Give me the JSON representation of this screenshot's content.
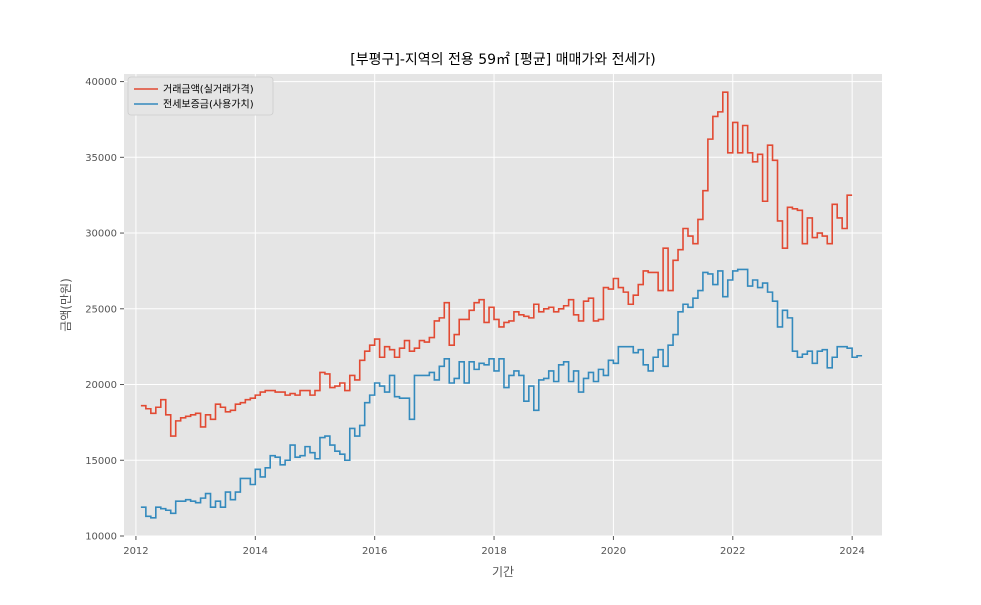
{
  "chart_data": {
    "type": "line",
    "drawstyle": "steps-post",
    "title": "[부평구]-지역의 전용 59㎡ [평균] 매매가와 전세가)",
    "xlabel": "기간",
    "ylabel": "금액(만원)",
    "xlim": [
      2011.8,
      2024.5
    ],
    "ylim": [
      10000,
      40500
    ],
    "grid": true,
    "legend_placement": "top-left",
    "x_ticks": [
      2012,
      2014,
      2016,
      2018,
      2020,
      2022,
      2024
    ],
    "x_tick_labels": [
      "2012",
      "2014",
      "2016",
      "2018",
      "2020",
      "2022",
      "2024"
    ],
    "y_ticks": [
      10000,
      15000,
      20000,
      25000,
      30000,
      35000,
      40000
    ],
    "y_tick_labels": [
      "10000",
      "15000",
      "20000",
      "25000",
      "30000",
      "35000",
      "40000"
    ],
    "x_start": 2012.083,
    "x_step": 0.08333,
    "series": [
      {
        "name": "거래금액(실거래가격)",
        "color": "#E24A33",
        "values": [
          18600,
          18400,
          18100,
          18500,
          19000,
          18000,
          16600,
          17600,
          17800,
          17900,
          18000,
          18100,
          17200,
          18000,
          17700,
          18700,
          18500,
          18200,
          18300,
          18700,
          18800,
          19000,
          19100,
          19300,
          19500,
          19600,
          19600,
          19500,
          19500,
          19300,
          19400,
          19300,
          19600,
          19600,
          19300,
          19600,
          20800,
          20700,
          19800,
          19900,
          20100,
          19600,
          20600,
          20300,
          21600,
          22200,
          22600,
          23000,
          21800,
          22500,
          22300,
          21800,
          22400,
          22900,
          22200,
          22400,
          22900,
          22800,
          23100,
          24200,
          24400,
          25400,
          22600,
          23300,
          24300,
          24300,
          24900,
          25400,
          25600,
          24100,
          25100,
          24300,
          23800,
          24100,
          24200,
          24800,
          24600,
          24500,
          24400,
          25300,
          24800,
          25000,
          25100,
          24800,
          25000,
          25200,
          25600,
          24600,
          24200,
          25500,
          25700,
          24200,
          24300,
          26400,
          26300,
          27000,
          26400,
          26100,
          25300,
          25900,
          26600,
          27500,
          27400,
          27400,
          26200,
          29000,
          26200,
          28200,
          28900,
          30300,
          29800,
          29300,
          30900,
          32800,
          36200,
          37700,
          38000,
          39300,
          35300,
          37300,
          35300,
          37100,
          35300,
          34700,
          35200,
          32100,
          35800,
          34800,
          30800,
          29000,
          31700,
          31600,
          31500,
          29300,
          31000,
          29700,
          30000,
          29800,
          29300,
          31900,
          31000,
          30300,
          32500
        ]
      },
      {
        "name": "전세보증금(사용가치)",
        "color": "#348ABD",
        "values": [
          11900,
          11300,
          11200,
          11900,
          11800,
          11700,
          11500,
          12300,
          12300,
          12400,
          12300,
          12200,
          12500,
          12800,
          11900,
          12300,
          11900,
          12900,
          12400,
          12900,
          13800,
          13800,
          13400,
          14400,
          13900,
          14500,
          15300,
          15200,
          14700,
          15000,
          16000,
          15200,
          15300,
          15900,
          15500,
          15100,
          16500,
          16600,
          16000,
          15600,
          15400,
          15000,
          17100,
          16600,
          17300,
          18800,
          19300,
          20100,
          19900,
          19500,
          20600,
          19200,
          19100,
          19100,
          17700,
          20600,
          20600,
          20600,
          20800,
          20300,
          21200,
          21700,
          20100,
          20400,
          21500,
          20100,
          21500,
          21000,
          21400,
          21300,
          21700,
          20900,
          21700,
          19800,
          20600,
          20900,
          20600,
          18900,
          19900,
          18300,
          20300,
          20400,
          20900,
          20200,
          21300,
          21500,
          20200,
          20900,
          19500,
          20400,
          20800,
          20200,
          21000,
          20600,
          21600,
          21400,
          22500,
          22500,
          22500,
          22100,
          22300,
          21300,
          20900,
          21800,
          22300,
          21200,
          22600,
          23300,
          24800,
          25300,
          25100,
          25700,
          26200,
          27400,
          27300,
          26600,
          27500,
          25800,
          26900,
          27500,
          27600,
          27600,
          26500,
          26900,
          26400,
          26700,
          26100,
          25500,
          23800,
          24900,
          24400,
          22200,
          21800,
          22000,
          22200,
          21400,
          22200,
          22300,
          21100,
          21800,
          22500,
          22500,
          22400,
          21800,
          21900
        ]
      }
    ]
  }
}
